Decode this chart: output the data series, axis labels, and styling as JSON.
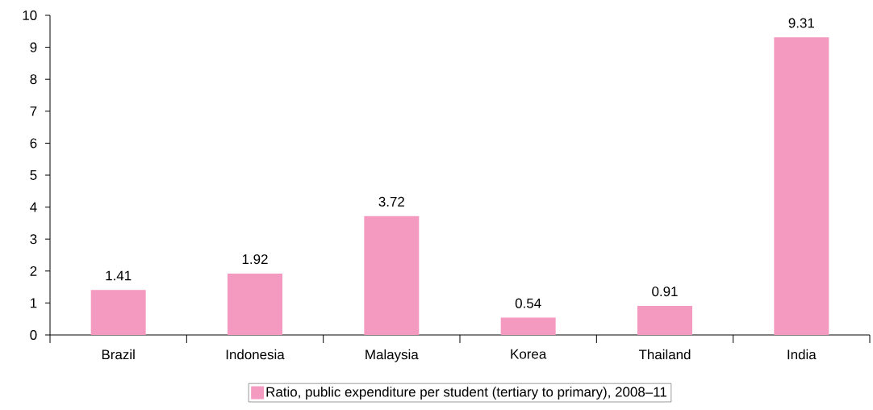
{
  "chart_data": {
    "type": "bar",
    "categories": [
      "Brazil",
      "Indonesia",
      "Malaysia",
      "Korea",
      "Thailand",
      "India"
    ],
    "series": [
      {
        "name": "Ratio, public expenditure per student (tertiary to primary), 2008–11",
        "color": "#f49ac1",
        "values": [
          1.41,
          1.92,
          3.72,
          0.54,
          0.91,
          9.31
        ]
      }
    ],
    "ylim": [
      0,
      10
    ],
    "yticks": [
      0,
      1,
      2,
      3,
      4,
      5,
      6,
      7,
      8,
      9,
      10
    ],
    "data_labels": true,
    "legend": "bottom",
    "grid": false
  }
}
